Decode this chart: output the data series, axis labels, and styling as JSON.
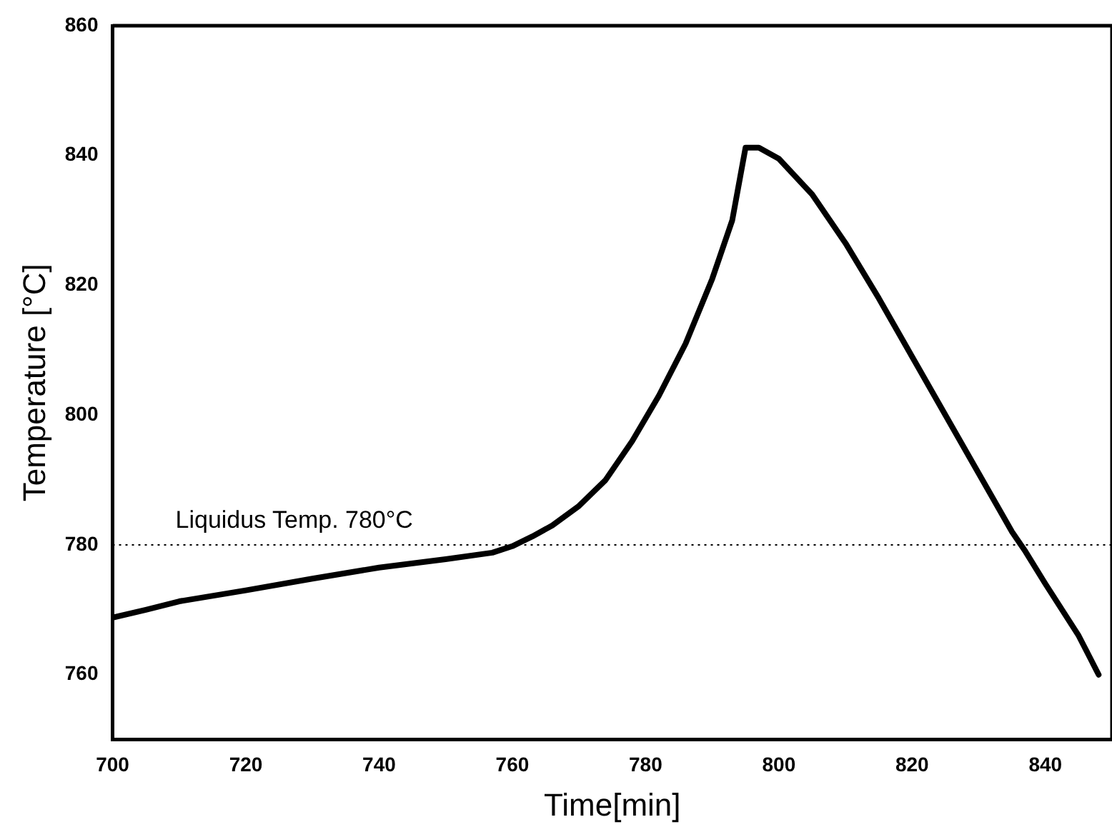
{
  "chart_data": {
    "type": "line",
    "xlabel": "Time[min]",
    "ylabel": "Temperature [°C]",
    "xlim": [
      700,
      850
    ],
    "xticks": [
      700,
      720,
      740,
      760,
      780,
      800,
      820,
      840
    ],
    "ylim": [
      750,
      860
    ],
    "yticks": [
      760,
      780,
      800,
      820,
      840,
      860
    ],
    "grid": false,
    "legend": false,
    "marker": "none",
    "line_style": "solid",
    "ref_lines": [
      {
        "axis": "y",
        "value": 780,
        "label": "Liquidus Temp. 780°C",
        "color": "#000000",
        "line_style": "dotted"
      }
    ],
    "series": [
      {
        "color": "#000000",
        "x": [
          700,
          705,
          710,
          720,
          730,
          740,
          750,
          757,
          760,
          763,
          766,
          770,
          774,
          778,
          782,
          786,
          790,
          793,
          795,
          797,
          800,
          805,
          810,
          815,
          820,
          825,
          830,
          835,
          837,
          840,
          845,
          848
        ],
        "values": [
          768.8,
          770,
          771.3,
          773,
          774.8,
          776.5,
          777.8,
          778.8,
          779.8,
          781.3,
          783,
          786,
          790,
          796,
          803,
          811,
          821,
          830,
          841.2,
          841.2,
          839.5,
          834,
          826.5,
          818,
          809,
          800,
          791,
          782,
          779,
          774,
          766,
          760
        ]
      }
    ]
  }
}
